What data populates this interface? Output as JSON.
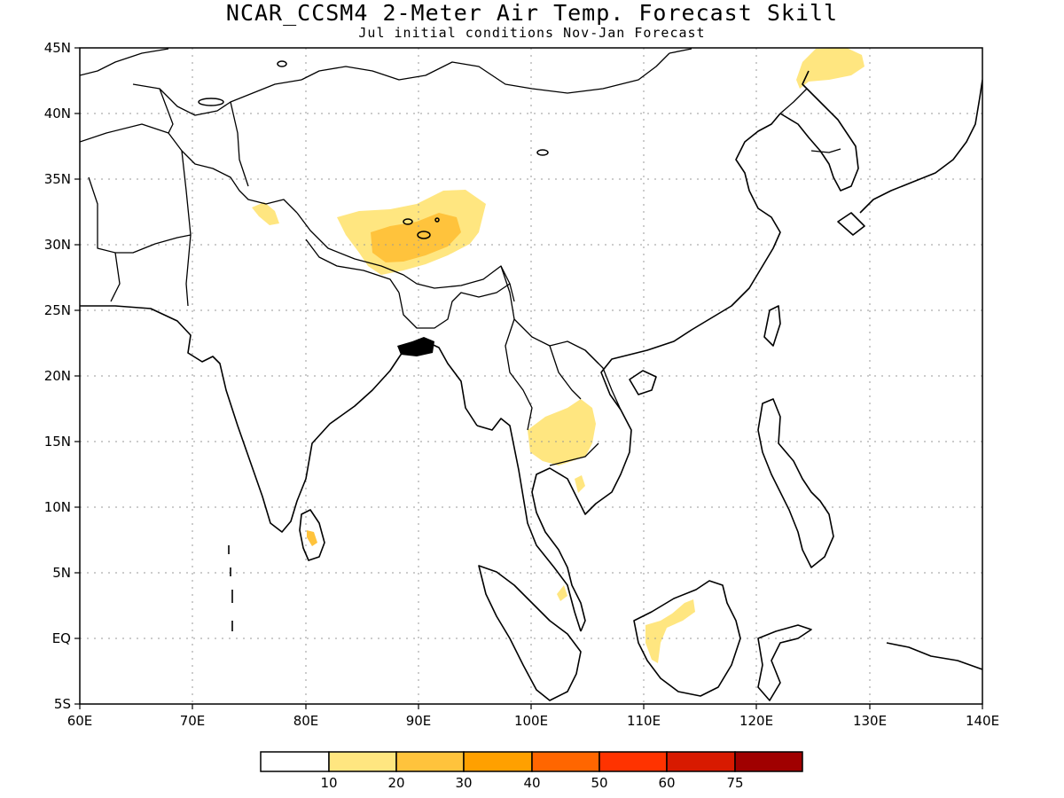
{
  "header": {
    "title": "NCAR_CCSM4 2-Meter Air Temp. Forecast Skill",
    "subtitle": "Jul initial conditions  Nov-Jan Forecast"
  },
  "map": {
    "lon_range": [
      60,
      140
    ],
    "lat_range": [
      -5,
      45
    ],
    "lat_labels": [
      "45N",
      "40N",
      "35N",
      "30N",
      "25N",
      "20N",
      "15N",
      "10N",
      "5N",
      "EQ",
      "5S"
    ],
    "lon_labels": [
      "60E",
      "70E",
      "80E",
      "90E",
      "100E",
      "110E",
      "120E",
      "130E",
      "140E"
    ],
    "gridlines": true
  },
  "legend": {
    "labels": [
      "10",
      "20",
      "30",
      "40",
      "50",
      "60",
      "75"
    ],
    "colors": [
      "#ffffff",
      "#ffe680",
      "#ffc33c",
      "#ffa000",
      "#ff6600",
      "#ff3300",
      "#d81a00",
      "#a00000"
    ]
  }
}
